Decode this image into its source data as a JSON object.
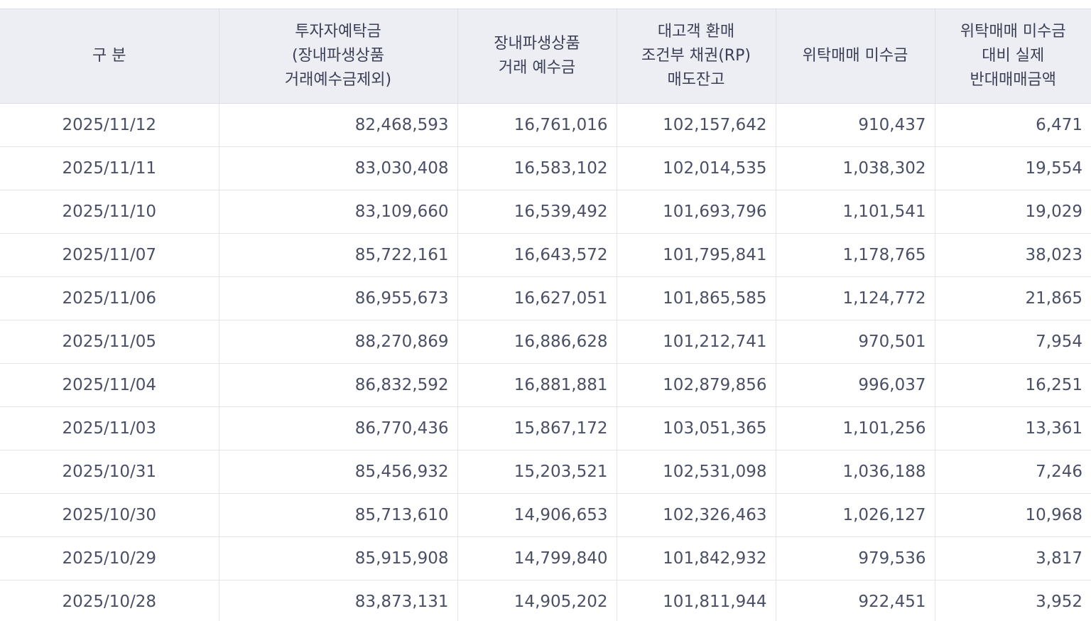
{
  "headers": [
    [
      "구 분"
    ],
    [
      "투자자예탁금",
      "(장내파생상품",
      "거래예수금제외)"
    ],
    [
      "장내파생상품",
      "거래 예수금"
    ],
    [
      "대고객 환매",
      "조건부 채권(RP)",
      "매도잔고"
    ],
    [
      "위탁매매 미수금"
    ],
    [
      "위탁매매 미수금",
      "대비 실제",
      "반대매매금액"
    ]
  ],
  "rows": [
    [
      "2025/11/12",
      "82,468,593",
      "16,761,016",
      "102,157,642",
      "910,437",
      "6,471"
    ],
    [
      "2025/11/11",
      "83,030,408",
      "16,583,102",
      "102,014,535",
      "1,038,302",
      "19,554"
    ],
    [
      "2025/11/10",
      "83,109,660",
      "16,539,492",
      "101,693,796",
      "1,101,541",
      "19,029"
    ],
    [
      "2025/11/07",
      "85,722,161",
      "16,643,572",
      "101,795,841",
      "1,178,765",
      "38,023"
    ],
    [
      "2025/11/06",
      "86,955,673",
      "16,627,051",
      "101,865,585",
      "1,124,772",
      "21,865"
    ],
    [
      "2025/11/05",
      "88,270,869",
      "16,886,628",
      "101,212,741",
      "970,501",
      "7,954"
    ],
    [
      "2025/11/04",
      "86,832,592",
      "16,881,881",
      "102,879,856",
      "996,037",
      "16,251"
    ],
    [
      "2025/11/03",
      "86,770,436",
      "15,867,172",
      "103,051,365",
      "1,101,256",
      "13,361"
    ],
    [
      "2025/10/31",
      "85,456,932",
      "15,203,521",
      "102,531,098",
      "1,036,188",
      "7,246"
    ],
    [
      "2025/10/30",
      "85,713,610",
      "14,906,653",
      "102,326,463",
      "1,026,127",
      "10,968"
    ],
    [
      "2025/10/29",
      "85,915,908",
      "14,799,840",
      "101,842,932",
      "979,536",
      "3,817"
    ],
    [
      "2025/10/28",
      "83,873,131",
      "14,905,202",
      "101,811,944",
      "922,451",
      "3,952"
    ]
  ]
}
